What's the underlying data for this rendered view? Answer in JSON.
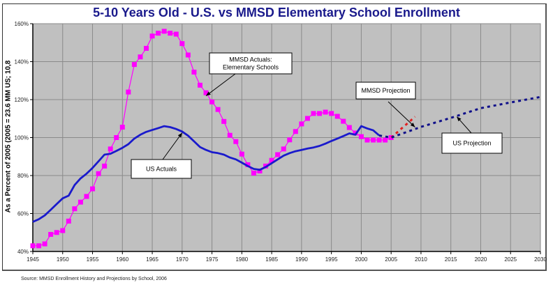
{
  "chart_data": {
    "type": "line",
    "title": "5-10 Years Old - U.S.  vs  MMSD Elementary School Enrollment",
    "xlabel": "",
    "ylabel": "As a Percent of 2005  (2005 = 23.6 MM US; 10,8",
    "source": "Source:  MMSD Enrollment History and Projections by School, 2006",
    "xlim": [
      1945,
      2030
    ],
    "ylim": [
      40,
      160
    ],
    "x_ticks": [
      1945,
      1950,
      1955,
      1960,
      1965,
      1970,
      1975,
      1980,
      1985,
      1990,
      1995,
      2000,
      2005,
      2010,
      2015,
      2020,
      2025,
      2030
    ],
    "y_ticks": [
      40,
      60,
      80,
      100,
      120,
      140,
      160
    ],
    "y_tick_labels": [
      "40%",
      "60%",
      "80%",
      "100%",
      "120%",
      "140%",
      "160%"
    ],
    "grid": true,
    "plot_background": "#c0c0c0",
    "series": [
      {
        "name": "MMSD Actuals: Elementary Schools",
        "color": "#ff00ff",
        "style": "line-square-markers",
        "x": [
          1945,
          1946,
          1947,
          1948,
          1949,
          1950,
          1951,
          1952,
          1953,
          1954,
          1955,
          1956,
          1957,
          1958,
          1959,
          1960,
          1961,
          1962,
          1963,
          1964,
          1965,
          1966,
          1967,
          1968,
          1969,
          1970,
          1971,
          1972,
          1973,
          1974,
          1975,
          1976,
          1977,
          1978,
          1979,
          1980,
          1981,
          1982,
          1983,
          1984,
          1985,
          1986,
          1987,
          1988,
          1989,
          1990,
          1991,
          1992,
          1993,
          1994,
          1995,
          1996,
          1997,
          1998,
          1999,
          2000,
          2001,
          2002,
          2003,
          2004,
          2005
        ],
        "y": [
          43,
          43,
          44,
          49,
          50,
          51,
          56,
          62.5,
          66,
          69,
          73,
          81,
          85,
          94,
          100,
          105.5,
          124,
          138.5,
          142.5,
          147,
          153.5,
          155,
          156,
          155,
          154.5,
          149.5,
          143.5,
          134.5,
          127.6,
          123.6,
          118.8,
          114.8,
          108.5,
          101.2,
          97.9,
          91.3,
          85.7,
          81.3,
          82.4,
          85,
          88,
          91,
          94,
          98.8,
          103.2,
          107.2,
          110.1,
          112.7,
          112.7,
          113.4,
          112.7,
          111.2,
          108.6,
          105.3,
          102.4,
          100.5,
          98.7,
          98.7,
          98.7,
          98.7,
          100
        ]
      },
      {
        "name": "US Actuals",
        "color": "#1a1acc",
        "style": "line",
        "x": [
          1945,
          1946,
          1947,
          1948,
          1949,
          1950,
          1951,
          1952,
          1953,
          1954,
          1955,
          1956,
          1957,
          1958,
          1959,
          1960,
          1961,
          1962,
          1963,
          1964,
          1965,
          1966,
          1967,
          1968,
          1969,
          1970,
          1971,
          1972,
          1973,
          1974,
          1975,
          1976,
          1977,
          1978,
          1979,
          1980,
          1981,
          1982,
          1983,
          1984,
          1985,
          1986,
          1987,
          1988,
          1989,
          1990,
          1991,
          1992,
          1993,
          1994,
          1995,
          1996,
          1997,
          1998,
          1999,
          2000,
          2001,
          2002,
          2003
        ],
        "y": [
          55.6,
          57,
          59,
          62,
          65,
          68,
          69.4,
          75,
          78.5,
          81,
          84,
          87.5,
          91,
          91.5,
          93,
          94.6,
          96.5,
          99.5,
          101.5,
          103,
          104,
          105,
          106,
          105.5,
          104.5,
          103.2,
          101,
          98,
          95,
          93.5,
          92.3,
          91.8,
          91,
          89.5,
          88.5,
          86.8,
          85,
          83.5,
          83,
          84.5,
          86.5,
          88.5,
          90.5,
          91.8,
          92.8,
          93.5,
          94.2,
          94.8,
          95.6,
          96.8,
          98.2,
          99.5,
          100.8,
          102.2,
          101.5,
          106,
          104.8,
          103.8,
          101.1
        ]
      },
      {
        "name": "MMSD Projection",
        "color": "#e02020",
        "style": "dotted",
        "x": [
          2005,
          2006,
          2007,
          2008,
          2009
        ],
        "y": [
          100,
          102.7,
          105.5,
          108.2,
          111
        ]
      },
      {
        "name": "US Projection",
        "color": "#10108a",
        "style": "dotted",
        "x": [
          2003,
          2005,
          2010,
          2015,
          2020,
          2025,
          2030
        ],
        "y": [
          101.1,
          100,
          105.6,
          110.4,
          115.5,
          118.5,
          121.4
        ]
      }
    ],
    "annotations": [
      {
        "id": "mmsd-actuals",
        "lines": [
          "MMSD Actuals:",
          "Elementary Schools"
        ],
        "arrow_to": [
          1974,
          122
        ]
      },
      {
        "id": "us-actuals",
        "lines": [
          "US Actuals"
        ],
        "arrow_to": [
          1970,
          102.5
        ]
      },
      {
        "id": "mmsd-projection",
        "lines": [
          "MMSD Projection"
        ],
        "arrow_to": [
          2009,
          105.5
        ]
      },
      {
        "id": "us-projection",
        "lines": [
          "US Projection"
        ],
        "arrow_to": [
          2016,
          111
        ]
      }
    ]
  }
}
